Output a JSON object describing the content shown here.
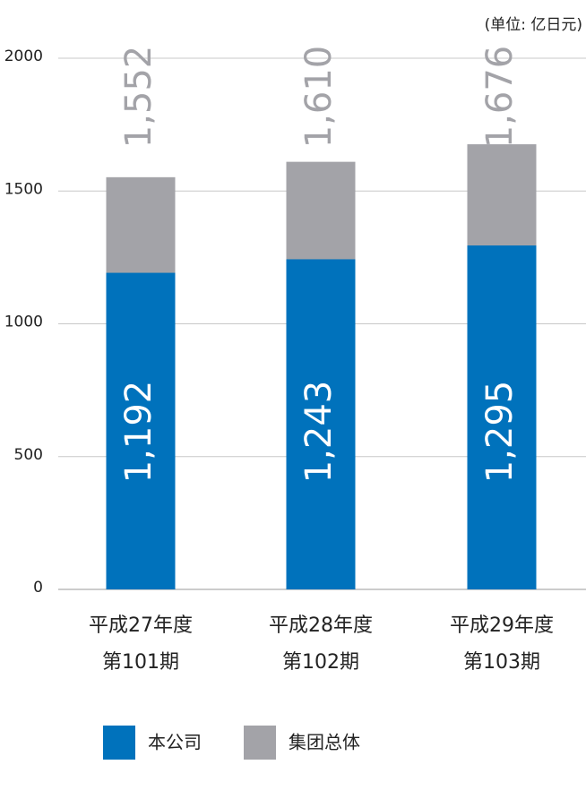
{
  "chart_data": {
    "type": "bar",
    "unit_note": "(单位: 亿日元)",
    "categories": [
      [
        "平成27年度",
        "第101期"
      ],
      [
        "平成28年度",
        "第102期"
      ],
      [
        "平成29年度",
        "第103期"
      ]
    ],
    "series": [
      {
        "name": "集团总体",
        "color": "#a3a3a8",
        "values": [
          1552,
          1610,
          1676
        ],
        "value_labels": [
          "1,552",
          "1,610",
          "1,676"
        ]
      },
      {
        "name": "本公司",
        "color": "#0072bc",
        "values": [
          1192,
          1243,
          1295
        ],
        "value_labels": [
          "1,192",
          "1,243",
          "1,295"
        ]
      }
    ],
    "ylim": [
      0,
      2000
    ],
    "yticks": [
      0,
      500,
      1000,
      1500,
      2000
    ],
    "grid": true
  }
}
